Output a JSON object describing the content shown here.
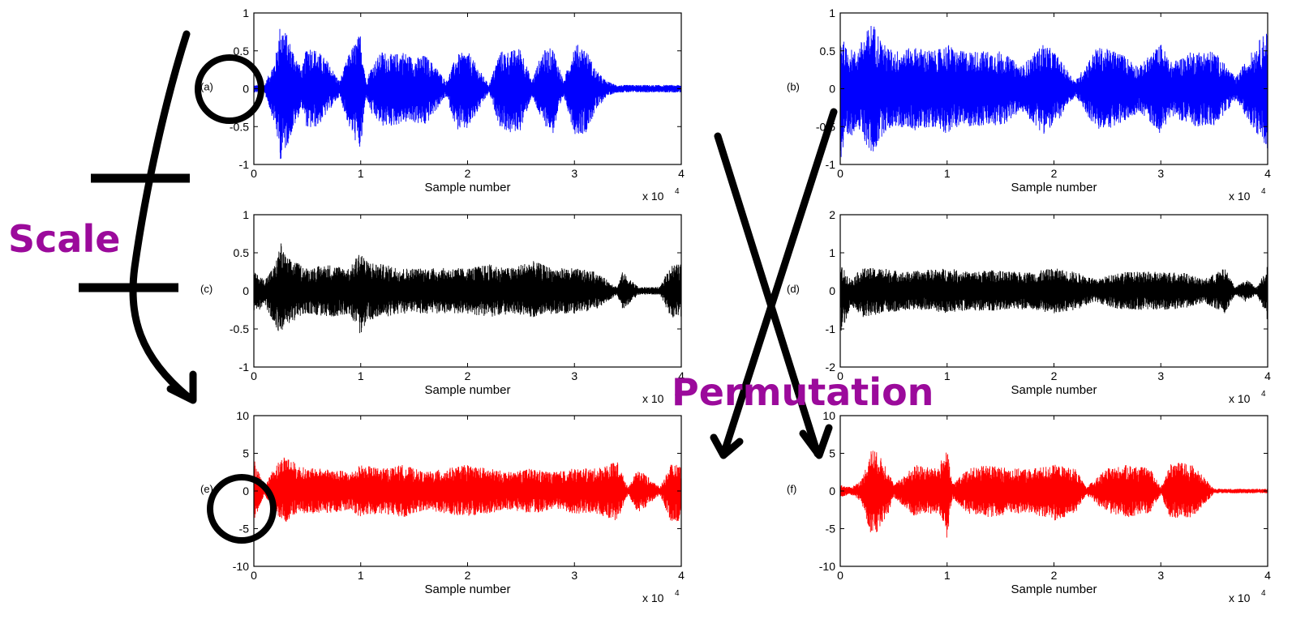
{
  "chart_data": [
    {
      "panel": "(a)",
      "type": "line",
      "color": "#0000ff",
      "xlabel": "Sample number",
      "x_multiplier": "x 10",
      "x_multiplier_exp": "4",
      "xlim": [
        0,
        4
      ],
      "ylim": [
        -1,
        1
      ],
      "xticks": [
        "0",
        "1",
        "2",
        "3",
        "4"
      ],
      "yticks": [
        "-1",
        "-0.5",
        "0",
        "0.5",
        "1"
      ],
      "envelope": {
        "x": [
          0,
          0.1,
          0.2,
          0.25,
          0.3,
          0.45,
          0.5,
          0.6,
          0.7,
          0.8,
          0.9,
          1.0,
          1.05,
          1.1,
          1.2,
          1.3,
          1.4,
          1.5,
          1.6,
          1.7,
          1.8,
          1.9,
          2.0,
          2.2,
          2.3,
          2.4,
          2.5,
          2.6,
          2.7,
          2.8,
          2.9,
          3.0,
          3.1,
          3.2,
          3.3,
          3.4,
          3.6,
          3.8,
          4.0
        ],
        "upper": [
          0.05,
          0.05,
          0.4,
          0.9,
          0.75,
          0.25,
          0.6,
          0.5,
          0.35,
          0.1,
          0.5,
          0.75,
          0.1,
          0.3,
          0.5,
          0.45,
          0.5,
          0.4,
          0.45,
          0.3,
          0.1,
          0.45,
          0.5,
          0.05,
          0.5,
          0.5,
          0.55,
          0.1,
          0.5,
          0.55,
          0.1,
          0.6,
          0.55,
          0.25,
          0.1,
          0.05,
          0.05,
          0.05,
          0.05
        ],
        "lower": [
          -0.05,
          -0.05,
          -0.5,
          -0.95,
          -0.8,
          -0.25,
          -0.55,
          -0.5,
          -0.3,
          -0.1,
          -0.55,
          -0.85,
          -0.1,
          -0.35,
          -0.5,
          -0.5,
          -0.45,
          -0.45,
          -0.5,
          -0.3,
          -0.1,
          -0.55,
          -0.55,
          -0.05,
          -0.5,
          -0.6,
          -0.55,
          -0.1,
          -0.45,
          -0.6,
          -0.1,
          -0.6,
          -0.6,
          -0.3,
          -0.1,
          -0.05,
          -0.05,
          -0.05,
          -0.05
        ]
      }
    },
    {
      "panel": "(b)",
      "type": "line",
      "color": "#0000ff",
      "xlabel": "Sample number",
      "x_multiplier": "x 10",
      "x_multiplier_exp": "4",
      "xlim": [
        0,
        4
      ],
      "ylim": [
        -1,
        1
      ],
      "xticks": [
        "0",
        "1",
        "2",
        "3",
        "4"
      ],
      "yticks": [
        "-1",
        "-0.5",
        "0",
        "0.5",
        "1"
      ],
      "envelope": {
        "x": [
          0,
          0.05,
          0.15,
          0.3,
          0.4,
          0.5,
          0.7,
          0.9,
          1.0,
          1.1,
          1.3,
          1.5,
          1.7,
          1.9,
          2.0,
          2.2,
          2.4,
          2.6,
          2.8,
          3.0,
          3.1,
          3.3,
          3.5,
          3.7,
          3.9,
          4.0
        ],
        "upper": [
          0.8,
          0.55,
          0.5,
          0.9,
          0.6,
          0.5,
          0.55,
          0.5,
          0.6,
          0.5,
          0.5,
          0.5,
          0.3,
          0.6,
          0.5,
          0.1,
          0.55,
          0.5,
          0.3,
          0.6,
          0.35,
          0.5,
          0.5,
          0.15,
          0.6,
          0.8
        ],
        "lower": [
          -1.0,
          -0.8,
          -0.5,
          -0.9,
          -0.6,
          -0.5,
          -0.55,
          -0.5,
          -0.6,
          -0.5,
          -0.5,
          -0.5,
          -0.3,
          -0.6,
          -0.5,
          -0.1,
          -0.55,
          -0.5,
          -0.3,
          -0.6,
          -0.35,
          -0.5,
          -0.5,
          -0.15,
          -0.6,
          -0.8
        ]
      }
    },
    {
      "panel": "(c)",
      "type": "line",
      "color": "#000000",
      "xlabel": "Sample number",
      "x_multiplier": "x 10",
      "x_multiplier_exp": "4",
      "xlim": [
        0,
        4
      ],
      "ylim": [
        -1,
        1
      ],
      "xticks": [
        "0",
        "1",
        "2",
        "3",
        "4"
      ],
      "yticks": [
        "-1",
        "-0.5",
        "0",
        "0.5",
        "1"
      ],
      "envelope": {
        "x": [
          0,
          0.1,
          0.2,
          0.25,
          0.3,
          0.5,
          0.7,
          0.9,
          1.0,
          1.05,
          1.2,
          1.4,
          1.6,
          1.8,
          2.0,
          2.2,
          2.4,
          2.6,
          2.8,
          3.0,
          3.2,
          3.4,
          3.45,
          3.6,
          3.8,
          3.9,
          4.0
        ],
        "upper": [
          0.25,
          0.15,
          0.35,
          0.65,
          0.45,
          0.3,
          0.35,
          0.3,
          0.55,
          0.4,
          0.35,
          0.3,
          0.3,
          0.3,
          0.3,
          0.35,
          0.3,
          0.4,
          0.3,
          0.3,
          0.25,
          0.05,
          0.25,
          0.05,
          0.05,
          0.35,
          0.35
        ],
        "lower": [
          -0.3,
          -0.2,
          -0.45,
          -0.6,
          -0.45,
          -0.3,
          -0.35,
          -0.3,
          -0.6,
          -0.4,
          -0.35,
          -0.3,
          -0.3,
          -0.3,
          -0.3,
          -0.35,
          -0.3,
          -0.35,
          -0.3,
          -0.3,
          -0.25,
          -0.05,
          -0.25,
          -0.05,
          -0.05,
          -0.35,
          -0.35
        ]
      }
    },
    {
      "panel": "(d)",
      "type": "line",
      "color": "#000000",
      "xlabel": "Sample number",
      "x_multiplier": "x 10",
      "x_multiplier_exp": "4",
      "xlim": [
        0,
        4
      ],
      "ylim": [
        -2,
        2
      ],
      "xticks": [
        "0",
        "1",
        "2",
        "3",
        "4"
      ],
      "yticks": [
        "-2",
        "-1",
        "0",
        "1",
        "2"
      ],
      "envelope": {
        "x": [
          0,
          0.1,
          0.2,
          0.4,
          0.6,
          0.8,
          1.0,
          1.2,
          1.4,
          1.6,
          1.8,
          2.0,
          2.2,
          2.4,
          2.6,
          2.8,
          3.0,
          3.2,
          3.4,
          3.6,
          3.7,
          3.8,
          3.9,
          4.0
        ],
        "upper": [
          0.7,
          0.3,
          0.6,
          0.6,
          0.5,
          0.55,
          0.6,
          0.5,
          0.55,
          0.5,
          0.5,
          0.6,
          0.5,
          0.3,
          0.5,
          0.5,
          0.5,
          0.5,
          0.3,
          0.6,
          0.1,
          0.3,
          0.1,
          0.7
        ],
        "lower": [
          -1.2,
          -0.4,
          -0.7,
          -0.6,
          -0.5,
          -0.5,
          -0.6,
          -0.5,
          -0.55,
          -0.5,
          -0.5,
          -0.6,
          -0.5,
          -0.3,
          -0.5,
          -0.5,
          -0.5,
          -0.5,
          -0.3,
          -0.6,
          -0.1,
          -0.3,
          -0.1,
          -0.8
        ]
      }
    },
    {
      "panel": "(e)",
      "type": "line",
      "color": "#ff0000",
      "xlabel": "Sample number",
      "x_multiplier": "x 10",
      "x_multiplier_exp": "4",
      "xlim": [
        0,
        4
      ],
      "ylim": [
        -10,
        10
      ],
      "xticks": [
        "0",
        "1",
        "2",
        "3",
        "4"
      ],
      "yticks": [
        "-10",
        "-5",
        "0",
        "5",
        "10"
      ],
      "envelope": {
        "x": [
          0,
          0.1,
          0.2,
          0.3,
          0.4,
          0.5,
          0.7,
          0.9,
          1.0,
          1.2,
          1.4,
          1.6,
          1.8,
          2.0,
          2.2,
          2.4,
          2.6,
          2.8,
          3.0,
          3.2,
          3.4,
          3.5,
          3.6,
          3.8,
          3.9,
          4.0
        ],
        "upper": [
          4.5,
          0.5,
          3.5,
          5.0,
          3.5,
          3.0,
          3.0,
          2.5,
          3.5,
          3.0,
          3.5,
          2.5,
          3.0,
          3.5,
          3.0,
          2.5,
          3.0,
          2.5,
          3.0,
          3.0,
          4.0,
          0.5,
          3.0,
          0.5,
          3.5,
          3.5
        ],
        "lower": [
          -4.0,
          -0.5,
          -3.0,
          -4.5,
          -3.0,
          -3.0,
          -3.0,
          -2.5,
          -3.5,
          -3.0,
          -3.5,
          -2.5,
          -3.0,
          -3.5,
          -3.0,
          -2.5,
          -3.0,
          -2.5,
          -3.0,
          -3.0,
          -4.0,
          -0.5,
          -3.0,
          -0.5,
          -4.0,
          -4.0
        ]
      }
    },
    {
      "panel": "(f)",
      "type": "line",
      "color": "#ff0000",
      "xlabel": "Sample number",
      "x_multiplier": "x 10",
      "x_multiplier_exp": "4",
      "xlim": [
        0,
        4
      ],
      "ylim": [
        -10,
        10
      ],
      "xticks": [
        "0",
        "1",
        "2",
        "3",
        "4"
      ],
      "yticks": [
        "-10",
        "-5",
        "0",
        "5",
        "10"
      ],
      "envelope": {
        "x": [
          0,
          0.1,
          0.2,
          0.3,
          0.45,
          0.5,
          0.7,
          0.9,
          1.0,
          1.05,
          1.2,
          1.4,
          1.6,
          1.8,
          2.0,
          2.2,
          2.3,
          2.5,
          2.7,
          2.9,
          3.0,
          3.1,
          3.3,
          3.5,
          3.8,
          4.0
        ],
        "upper": [
          0.8,
          0.5,
          1.5,
          6.0,
          3.0,
          0.8,
          3.5,
          3.0,
          5.5,
          1.0,
          3.0,
          3.5,
          3.0,
          3.0,
          3.5,
          3.0,
          0.5,
          3.0,
          3.5,
          3.0,
          0.5,
          4.0,
          3.5,
          0.3,
          0.3,
          0.3
        ],
        "lower": [
          -0.8,
          -0.5,
          -1.5,
          -6.5,
          -3.0,
          -0.8,
          -3.5,
          -3.0,
          -6.5,
          -1.0,
          -3.0,
          -3.5,
          -3.0,
          -3.0,
          -4.0,
          -3.0,
          -0.5,
          -3.0,
          -3.5,
          -3.0,
          -0.5,
          -4.0,
          -3.5,
          -0.3,
          -0.3,
          -0.3
        ]
      }
    }
  ],
  "annotations": {
    "scale_label": "Scale",
    "permutation_label": "Permutation",
    "scale_color": "#9b0a9b",
    "permutation_color": "#9b0a9b"
  }
}
